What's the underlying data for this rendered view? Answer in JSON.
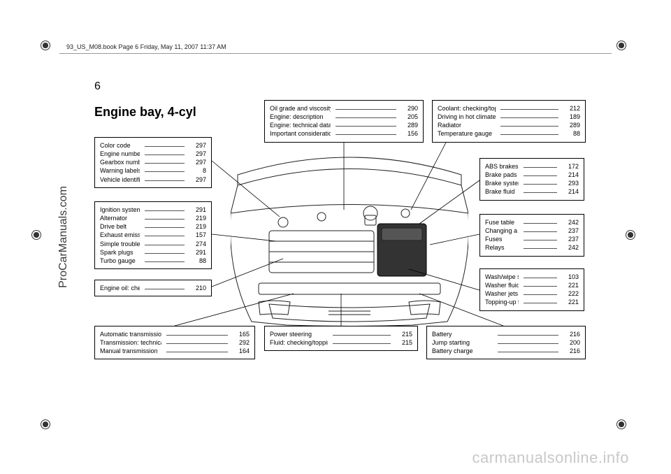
{
  "watermarks": {
    "left": "ProCarManuals.com",
    "bottom": "carmanualsonline.info"
  },
  "header": "93_US_M08.book  Page 6  Friday, May 11, 2007  11:37 AM",
  "page_number": "6",
  "title": "Engine bay, 4-cyl",
  "boxes": {
    "color": [
      {
        "label": "Color code",
        "page": "297"
      },
      {
        "label": "Engine number",
        "page": "297"
      },
      {
        "label": "Gearbox number",
        "page": "297"
      },
      {
        "label": "Warning labels",
        "page": "8"
      },
      {
        "label": "Vehicle identification number",
        "page": "297"
      }
    ],
    "ignition": [
      {
        "label": "Ignition system",
        "page": "291"
      },
      {
        "label": "Alternator",
        "page": "219"
      },
      {
        "label": "Drive belt",
        "page": "219"
      },
      {
        "label": "Exhaust emission control",
        "page": "157"
      },
      {
        "label": "Simple troubleshooting (ACC)",
        "page": "274"
      },
      {
        "label": "Spark plugs",
        "page": "291"
      },
      {
        "label": "Turbo gauge",
        "page": "88"
      }
    ],
    "engineoil": [
      {
        "label": "Engine oil: checking level",
        "page": "210"
      }
    ],
    "automatic": [
      {
        "label": "Automatic transmission",
        "page": "165"
      },
      {
        "label": "Transmission: technical data",
        "page": "292"
      },
      {
        "label": "Manual transmission",
        "page": "164"
      }
    ],
    "oilgrade": [
      {
        "label": "Oil grade and viscosity",
        "page": "290"
      },
      {
        "label": "Engine: description",
        "page": "205"
      },
      {
        "label": "Engine: technical data",
        "page": "289"
      },
      {
        "label": "Important considerations for driving",
        "page": "156"
      }
    ],
    "power": [
      {
        "label": "Power steering",
        "page": "215"
      },
      {
        "label": "Fluid: checking/topping up",
        "page": "215"
      }
    ],
    "coolant": [
      {
        "label": "Coolant: checking/topping-up",
        "page": "212"
      },
      {
        "label": "Driving in hot climates",
        "page": "189"
      },
      {
        "label": "Radiator",
        "page": "289"
      },
      {
        "label": "Temperature gauge",
        "page": "88"
      }
    ],
    "abs": [
      {
        "label": "ABS brakes",
        "page": "172"
      },
      {
        "label": "Brake pads",
        "page": "214"
      },
      {
        "label": "Brake system",
        "page": "293"
      },
      {
        "label": "Brake fluid",
        "page": "214"
      }
    ],
    "fuse": [
      {
        "label": "Fuse table",
        "page": "242"
      },
      {
        "label": "Changing a fuse",
        "page": "237"
      },
      {
        "label": "Fuses",
        "page": "237"
      },
      {
        "label": "Relays",
        "page": "242"
      }
    ],
    "wash": [
      {
        "label": "Wash/wipe stalk switch",
        "page": "103"
      },
      {
        "label": "Washer fluid",
        "page": "221"
      },
      {
        "label": "Washer jets",
        "page": "222"
      },
      {
        "label": "Topping-up fluid",
        "page": "221"
      }
    ],
    "battery": [
      {
        "label": "Battery",
        "page": "216"
      },
      {
        "label": "Jump starting",
        "page": "200"
      },
      {
        "label": "Battery charge",
        "page": "216"
      }
    ]
  }
}
